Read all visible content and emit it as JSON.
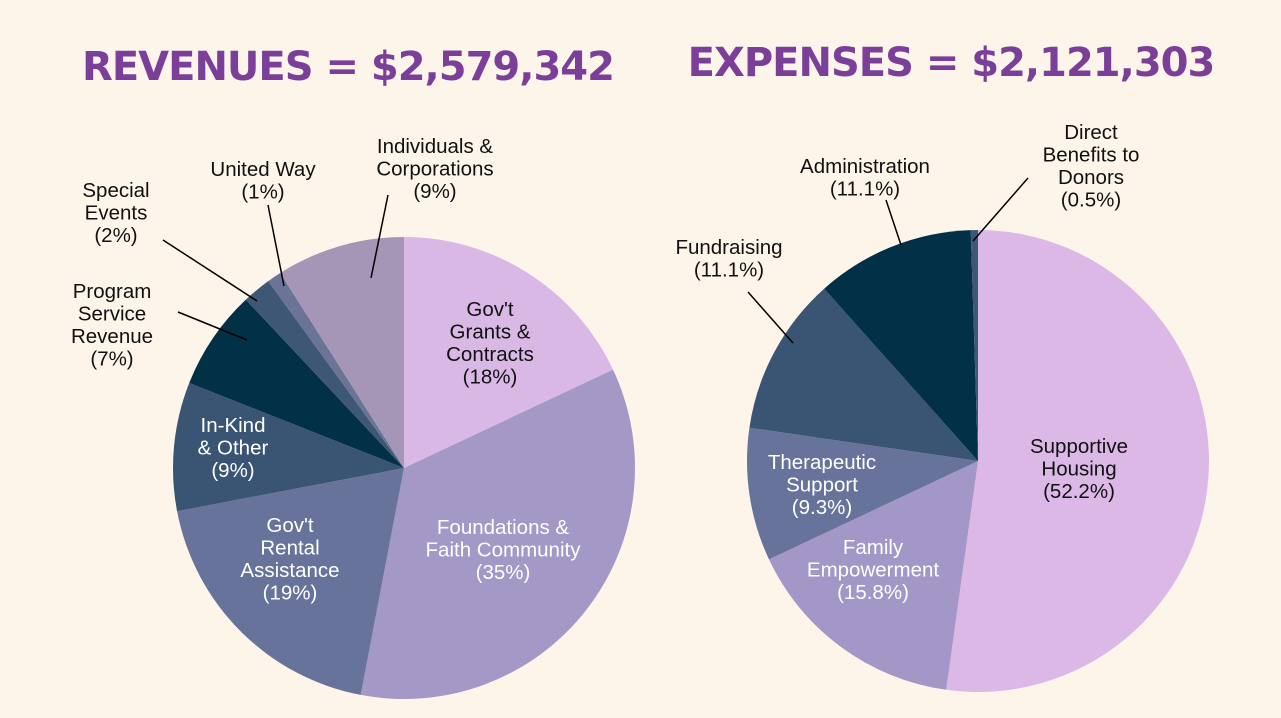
{
  "colors": {
    "background": "#fdf5ea",
    "title": "#7b3f9a",
    "dark_text": "#111111",
    "light_text": "#ffffff",
    "leader_line": "#000000"
  },
  "chart_data": [
    {
      "type": "pie",
      "title": "REVENUES = $2,579,342",
      "slices": [
        {
          "label": "Gov't Grants & Contracts",
          "display_label": [
            "Gov't",
            "Grants &",
            "Contracts"
          ],
          "percent_label": "(18%)",
          "value": 18,
          "color": "#dab8e6",
          "label_color": "#111111",
          "label_inside": true
        },
        {
          "label": "Foundations & Faith Community",
          "display_label": [
            "Foundations &",
            "Faith Community"
          ],
          "percent_label": "(35%)",
          "value": 35,
          "color": "#a398c6",
          "label_color": "#ffffff",
          "label_inside": true
        },
        {
          "label": "Gov't Rental Assistance",
          "display_label": [
            "Gov't",
            "Rental",
            "Assistance"
          ],
          "percent_label": "(19%)",
          "value": 19,
          "color": "#67739b",
          "label_color": "#ffffff",
          "label_inside": true
        },
        {
          "label": "In-Kind & Other",
          "display_label": [
            "In-Kind",
            "& Other"
          ],
          "percent_label": "(9%)",
          "value": 9,
          "color": "#3a5573",
          "label_color": "#ffffff",
          "label_inside": true
        },
        {
          "label": "Program Service Revenue",
          "display_label": [
            "Program",
            "Service",
            "Revenue"
          ],
          "percent_label": "(7%)",
          "value": 7,
          "color": "#023147",
          "label_color": "#111111",
          "label_inside": false
        },
        {
          "label": "Special Events",
          "display_label": [
            "Special",
            "Events"
          ],
          "percent_label": "(2%)",
          "value": 2,
          "color": "#3d5775",
          "label_color": "#111111",
          "label_inside": false
        },
        {
          "label": "United Way",
          "display_label": [
            "United Way"
          ],
          "percent_label": "(1%)",
          "value": 1,
          "color": "#6b7496",
          "label_color": "#111111",
          "label_inside": false
        },
        {
          "label": "Individuals & Corporations",
          "display_label": [
            "Individuals &",
            "Corporations"
          ],
          "percent_label": "(9%)",
          "value": 9,
          "color": "#a596b8",
          "label_color": "#111111",
          "label_inside": false
        }
      ]
    },
    {
      "type": "pie",
      "title": "EXPENSES = $2,121,303",
      "slices": [
        {
          "label": "Supportive Housing",
          "display_label": [
            "Supportive",
            "Housing"
          ],
          "percent_label": "(52.2%)",
          "value": 52.2,
          "color": "#dcb8e6",
          "label_color": "#111111",
          "label_inside": true
        },
        {
          "label": "Family Empowerment",
          "display_label": [
            "Family",
            "Empowerment"
          ],
          "percent_label": "(15.8%)",
          "value": 15.8,
          "color": "#a297c6",
          "label_color": "#ffffff",
          "label_inside": true
        },
        {
          "label": "Therapeutic Support",
          "display_label": [
            "Therapeutic",
            "Support"
          ],
          "percent_label": "(9.3%)",
          "value": 9.3,
          "color": "#67739b",
          "label_color": "#ffffff",
          "label_inside": true
        },
        {
          "label": "Fundraising",
          "display_label": [
            "Fundraising"
          ],
          "percent_label": "(11.1%)",
          "value": 11.1,
          "color": "#3a5573",
          "label_color": "#111111",
          "label_inside": false
        },
        {
          "label": "Administration",
          "display_label": [
            "Administration"
          ],
          "percent_label": "(11.1%)",
          "value": 11.1,
          "color": "#023147",
          "label_color": "#111111",
          "label_inside": false
        },
        {
          "label": "Direct Benefits to Donors",
          "display_label": [
            "Direct",
            "Benefits to",
            "Donors"
          ],
          "percent_label": "(0.5%)",
          "value": 0.5,
          "color": "#3d5775",
          "label_color": "#111111",
          "label_inside": false
        }
      ]
    }
  ]
}
